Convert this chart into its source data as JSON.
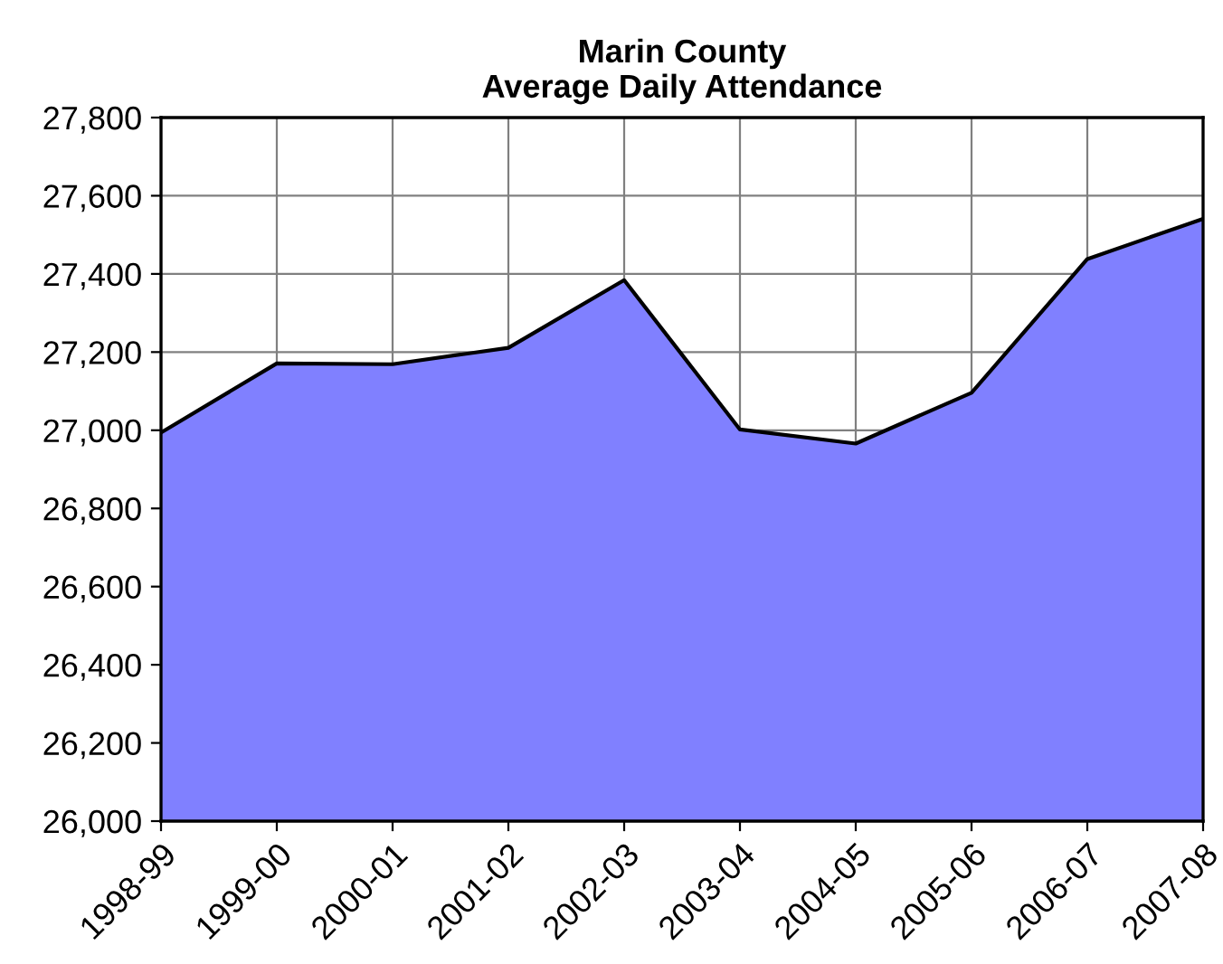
{
  "chart_data": {
    "type": "area",
    "title": "Marin County\nAverage Daily Attendance",
    "categories": [
      "1998-99",
      "1999-00",
      "2000-01",
      "2001-02",
      "2002-03",
      "2003-04",
      "2004-05",
      "2005-06",
      "2006-07",
      "2007-08"
    ],
    "values": [
      26994,
      27171,
      27169,
      27211,
      27384,
      27002,
      26966,
      27096,
      27438,
      27541
    ],
    "color": "#8080ff",
    "ylim": [
      26000,
      27800
    ],
    "yticks": [
      {
        "value": 26000,
        "label": "26,000"
      },
      {
        "value": 26200,
        "label": "26,200"
      },
      {
        "value": 26400,
        "label": "26,400"
      },
      {
        "value": 26600,
        "label": "26,600"
      },
      {
        "value": 26800,
        "label": "26,800"
      },
      {
        "value": 27000,
        "label": "27,000"
      },
      {
        "value": 27200,
        "label": "27,200"
      },
      {
        "value": 27400,
        "label": "27,400"
      },
      {
        "value": 27600,
        "label": "27,600"
      },
      {
        "value": 27800,
        "label": "27,800"
      }
    ],
    "grid": true
  }
}
